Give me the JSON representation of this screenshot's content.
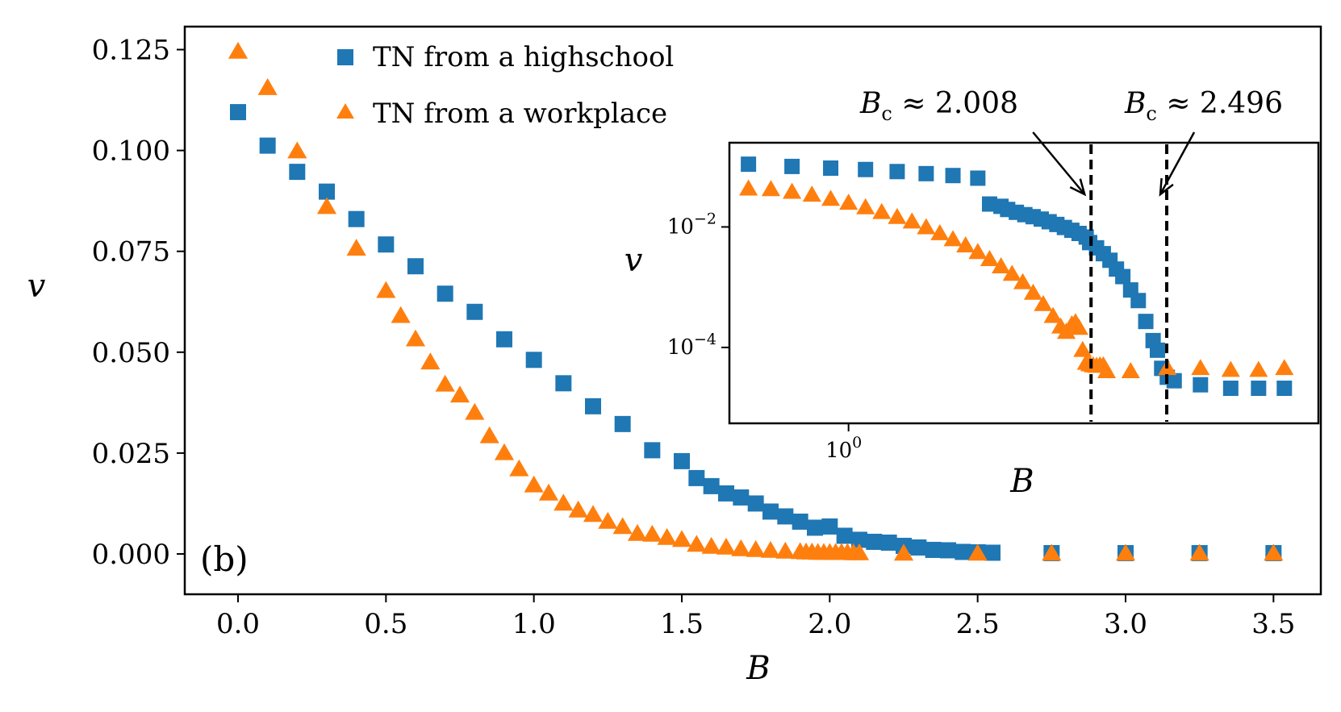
{
  "chart_data": [
    {
      "type": "scatter",
      "panel_label": "(b)",
      "xlabel": "B",
      "ylabel": "v",
      "xlim": [
        -0.18,
        3.66
      ],
      "ylim": [
        -0.01,
        0.1307
      ],
      "xticks": [
        "0.0",
        "0.5",
        "1.0",
        "1.5",
        "2.0",
        "2.5",
        "3.0",
        "3.5"
      ],
      "xtick_values": [
        0.0,
        0.5,
        1.0,
        1.5,
        2.0,
        2.5,
        3.0,
        3.5
      ],
      "yticks": [
        "0.000",
        "0.025",
        "0.050",
        "0.075",
        "0.100",
        "0.125"
      ],
      "ytick_values": [
        0.0,
        0.025,
        0.05,
        0.075,
        0.1,
        0.125
      ],
      "legend_position": "top-center",
      "series": [
        {
          "name": "TN from a highschool",
          "marker": "square",
          "color": "#1f77b4",
          "x": [
            0.0,
            0.1,
            0.2,
            0.3,
            0.4,
            0.5,
            0.6,
            0.7,
            0.8,
            0.9,
            1.0,
            1.1,
            1.2,
            1.3,
            1.4,
            1.5,
            1.55,
            1.6,
            1.65,
            1.7,
            1.75,
            1.8,
            1.85,
            1.9,
            1.95,
            2.0,
            2.05,
            2.1,
            2.15,
            2.2,
            2.25,
            2.3,
            2.35,
            2.4,
            2.45,
            2.5,
            2.55,
            2.75,
            3.0,
            3.25,
            3.5
          ],
          "y": [
            0.1095,
            0.1012,
            0.0947,
            0.0898,
            0.083,
            0.0767,
            0.0713,
            0.0645,
            0.06,
            0.0532,
            0.0481,
            0.0423,
            0.0366,
            0.0322,
            0.0257,
            0.023,
            0.0188,
            0.0168,
            0.015,
            0.014,
            0.0125,
            0.0105,
            0.0093,
            0.008,
            0.0065,
            0.0068,
            0.0045,
            0.0035,
            0.003,
            0.0028,
            0.002,
            0.0016,
            0.001,
            0.0009,
            0.0005,
            0.0004,
            0.0003,
            0.0002,
            0.0002,
            0.0002,
            0.0002
          ]
        },
        {
          "name": "TN from a workplace",
          "marker": "triangle",
          "color": "#ff7f0e",
          "x": [
            0.0,
            0.1,
            0.2,
            0.3,
            0.4,
            0.5,
            0.55,
            0.6,
            0.65,
            0.7,
            0.75,
            0.8,
            0.85,
            0.9,
            0.95,
            1.0,
            1.05,
            1.1,
            1.15,
            1.2,
            1.25,
            1.3,
            1.35,
            1.4,
            1.45,
            1.5,
            1.55,
            1.6,
            1.65,
            1.7,
            1.75,
            1.8,
            1.85,
            1.9,
            1.92,
            1.94,
            1.96,
            1.98,
            2.0,
            2.02,
            2.04,
            2.06,
            2.08,
            2.1,
            2.25,
            2.5,
            2.75,
            3.0,
            3.25,
            3.5
          ],
          "y": [
            0.1245,
            0.1155,
            0.0998,
            0.086,
            0.0757,
            0.0652,
            0.059,
            0.0532,
            0.0475,
            0.042,
            0.0393,
            0.035,
            0.0292,
            0.025,
            0.021,
            0.017,
            0.015,
            0.0125,
            0.0108,
            0.0097,
            0.008,
            0.0067,
            0.005,
            0.0048,
            0.004,
            0.0035,
            0.0023,
            0.0018,
            0.0016,
            0.0012,
            0.001,
            0.0008,
            0.0006,
            0.0005,
            0.0004,
            0.0004,
            0.0003,
            0.0003,
            0.0003,
            0.0003,
            0.0003,
            0.0003,
            0.0002,
            0.0002,
            0.0001,
            0.0001,
            0.0001,
            0.0001,
            0.0001,
            0.0001
          ]
        }
      ]
    },
    {
      "type": "scatter",
      "subtitle": "inset",
      "xlabel": "B",
      "ylabel": "v",
      "xscale": "log",
      "yscale": "log",
      "xlim": [
        0.71,
        3.86
      ],
      "ylim": [
        5.5e-06,
        0.25
      ],
      "xticks": [
        "10^0"
      ],
      "xtick_values": [
        1.0
      ],
      "yticks": [
        "10^-2",
        "10^-4"
      ],
      "ytick_values": [
        0.01,
        0.0001
      ],
      "annotations": [
        {
          "label_var": "B",
          "label_sub": "c",
          "label_rest": " ≈ 2.008",
          "x": 2.008
        },
        {
          "label_var": "B",
          "label_sub": "c",
          "label_rest": " ≈ 2.496",
          "x": 2.496
        }
      ],
      "series": [
        {
          "name": "TN from a highschool",
          "marker": "square",
          "color": "#1f77b4",
          "x": [
            0.75,
            0.85,
            0.95,
            1.05,
            1.15,
            1.25,
            1.35,
            1.45,
            1.5,
            1.55,
            1.58,
            1.62,
            1.66,
            1.7,
            1.74,
            1.78,
            1.82,
            1.86,
            1.9,
            1.94,
            1.98,
            2.0,
            2.04,
            2.08,
            2.12,
            2.16,
            2.2,
            2.25,
            2.3,
            2.35,
            2.4,
            2.43,
            2.46,
            2.5,
            2.55,
            2.75,
            3.0,
            3.25,
            3.5
          ],
          "y": [
            0.11,
            0.101,
            0.0947,
            0.0898,
            0.083,
            0.0767,
            0.0713,
            0.0645,
            0.024,
            0.022,
            0.0195,
            0.0175,
            0.016,
            0.0148,
            0.0135,
            0.0122,
            0.011,
            0.0098,
            0.0088,
            0.0078,
            0.0068,
            0.0055,
            0.0045,
            0.0036,
            0.0028,
            0.002,
            0.0015,
            0.0009,
            0.0006,
            0.00027,
            0.00013,
            9e-05,
            4.5e-05,
            3.2e-05,
            2.8e-05,
            2.4e-05,
            2.1e-05,
            2.1e-05,
            2.1e-05
          ]
        },
        {
          "name": "TN from a workplace",
          "marker": "triangle",
          "color": "#ff7f0e",
          "x": [
            0.75,
            0.8,
            0.85,
            0.9,
            0.95,
            1.0,
            1.05,
            1.1,
            1.15,
            1.2,
            1.25,
            1.3,
            1.35,
            1.4,
            1.45,
            1.5,
            1.55,
            1.6,
            1.65,
            1.7,
            1.75,
            1.8,
            1.84,
            1.87,
            1.9,
            1.92,
            1.94,
            1.96,
            1.98,
            2.0,
            2.02,
            2.04,
            2.06,
            2.08,
            2.1,
            2.25,
            2.5,
            2.75,
            3.0,
            3.25,
            3.5
          ],
          "y": [
            0.043,
            0.042,
            0.038,
            0.034,
            0.029,
            0.025,
            0.021,
            0.0175,
            0.0145,
            0.0122,
            0.0098,
            0.0078,
            0.0062,
            0.0049,
            0.0038,
            0.0029,
            0.0022,
            0.00165,
            0.0012,
            0.0008,
            0.00052,
            0.00033,
            0.00022,
            0.00018,
            0.00024,
            0.00026,
            0.00021,
            9e-05,
            5.5e-05,
            5.2e-05,
            5e-05,
            4.9e-05,
            5e-05,
            5e-05,
            4e-05,
            4e-05,
            4.5e-05,
            4.5e-05,
            4.2e-05,
            4.2e-05,
            4.5e-05
          ]
        }
      ]
    }
  ]
}
